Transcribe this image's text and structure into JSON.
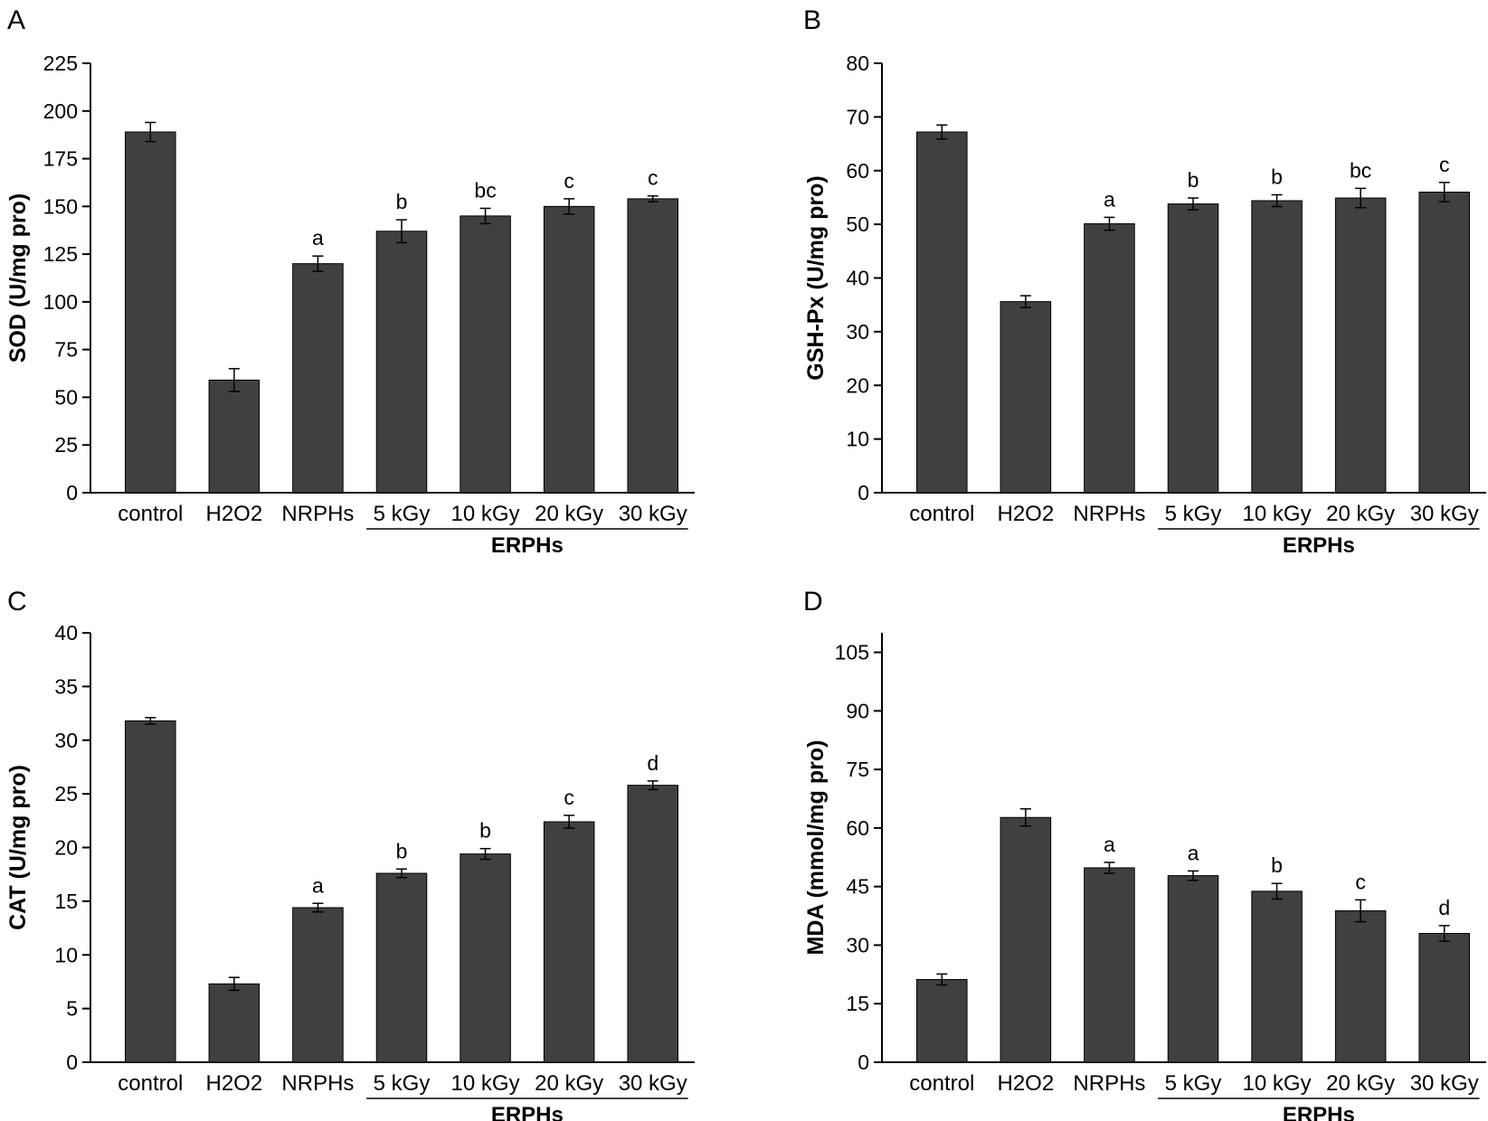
{
  "chart_data": [
    {
      "type": "bar",
      "panel": "A",
      "categories": [
        "control",
        "H2O2",
        "NRPHs",
        "5 kGy",
        "10 kGy",
        "20 kGy",
        "30 kGy"
      ],
      "values": [
        189,
        59,
        120,
        137,
        145,
        150,
        154
      ],
      "errors": [
        5,
        6,
        4,
        6,
        4,
        4,
        1.5
      ],
      "significance": [
        "",
        "",
        "a",
        "b",
        "bc",
        "c",
        "c"
      ],
      "ylabel": "SOD (U/mg pro)",
      "xlabel": "",
      "group_label": "ERPHs",
      "ylim": [
        0,
        225
      ],
      "yticks": [
        0,
        25,
        50,
        75,
        100,
        125,
        150,
        175,
        200,
        225
      ],
      "grid": false
    },
    {
      "type": "bar",
      "panel": "B",
      "categories": [
        "control",
        "H2O2",
        "NRPHs",
        "5 kGy",
        "10 kGy",
        "20 kGy",
        "30 kGy"
      ],
      "values": [
        67.2,
        35.6,
        50.1,
        53.8,
        54.4,
        54.9,
        56
      ],
      "errors": [
        1.3,
        1.1,
        1.2,
        1.1,
        1.1,
        1.8,
        1.8
      ],
      "significance": [
        "",
        "",
        "a",
        "b",
        "b",
        "bc",
        "c"
      ],
      "ylabel": "GSH-Px (U/mg pro)",
      "xlabel": "",
      "group_label": "ERPHs",
      "ylim": [
        0,
        80
      ],
      "yticks": [
        0,
        10,
        20,
        30,
        40,
        50,
        60,
        70,
        80
      ],
      "grid": false
    },
    {
      "type": "bar",
      "panel": "C",
      "categories": [
        "control",
        "H2O2",
        "NRPHs",
        "5 kGy",
        "10 kGy",
        "20 kGy",
        "30 kGy"
      ],
      "values": [
        31.8,
        7.3,
        14.4,
        17.6,
        19.4,
        22.4,
        25.8
      ],
      "errors": [
        0.3,
        0.6,
        0.4,
        0.4,
        0.5,
        0.6,
        0.4
      ],
      "significance": [
        "",
        "",
        "a",
        "b",
        "b",
        "c",
        "d"
      ],
      "ylabel": "CAT (U/mg pro)",
      "xlabel": "",
      "group_label": "ERPHs",
      "ylim": [
        0,
        40
      ],
      "yticks": [
        0,
        5,
        10,
        15,
        20,
        25,
        30,
        35,
        40
      ],
      "grid": false
    },
    {
      "type": "bar",
      "panel": "D",
      "categories": [
        "control",
        "H2O2",
        "NRPHs",
        "5 kGy",
        "10 kGy",
        "20 kGy",
        "30 kGy"
      ],
      "values": [
        21.2,
        62.7,
        49.8,
        47.8,
        43.8,
        38.8,
        33
      ],
      "errors": [
        1.4,
        2.2,
        1.4,
        1.2,
        2,
        2.8,
        2
      ],
      "significance": [
        "",
        "",
        "a",
        "a",
        "b",
        "c",
        "d"
      ],
      "ylabel": "MDA (mmol/mg pro)",
      "xlabel": "",
      "group_label": "ERPHs",
      "ylim": [
        0,
        110
      ],
      "yticks": [
        0,
        15,
        30,
        45,
        60,
        75,
        90,
        105
      ],
      "grid": false
    }
  ],
  "colors": {
    "bar": "#404040",
    "axis": "#000000"
  }
}
